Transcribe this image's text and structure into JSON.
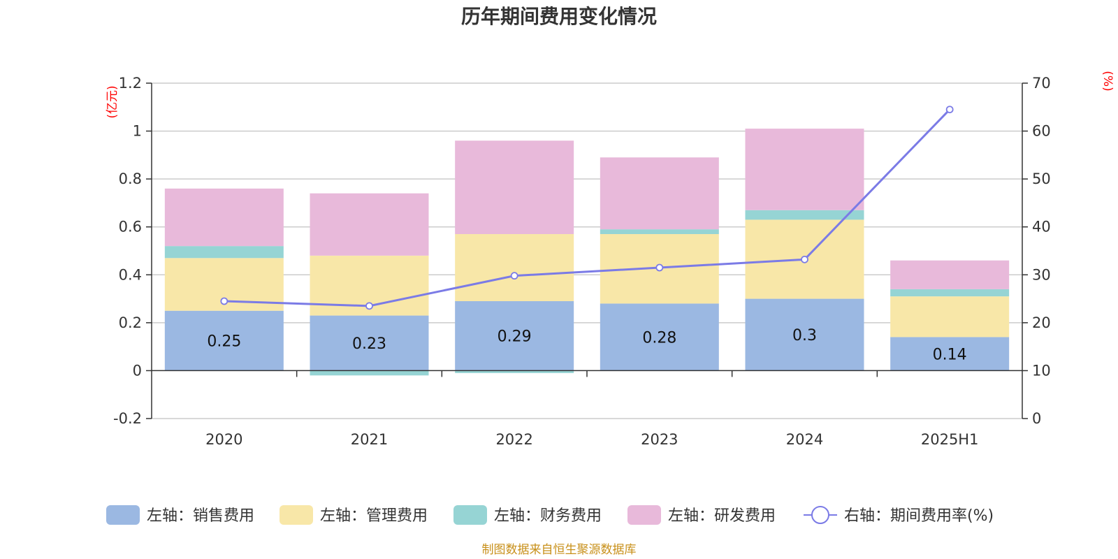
{
  "chart_data": {
    "type": "bar",
    "stacked": true,
    "title": "历年期间费用变化情况",
    "categories": [
      "2020",
      "2021",
      "2022",
      "2023",
      "2024",
      "2025H1"
    ],
    "left_axis": {
      "unit": "(亿元)",
      "range": [
        -0.2,
        1.2
      ],
      "ticks": [
        -0.2,
        0,
        0.2,
        0.4,
        0.6,
        0.8,
        1,
        1.2
      ],
      "tick_labels": [
        "-0.2",
        "0",
        "0.2",
        "0.4",
        "0.6",
        "0.8",
        "1",
        "1.2"
      ]
    },
    "right_axis": {
      "unit": "(%)",
      "range": [
        0,
        70
      ],
      "ticks": [
        0,
        10,
        20,
        30,
        40,
        50,
        60,
        70
      ],
      "tick_labels": [
        "0",
        "10",
        "20",
        "30",
        "40",
        "50",
        "60",
        "70"
      ]
    },
    "series": [
      {
        "name": "左轴：销售费用",
        "type": "bar",
        "axis": "left",
        "color": "#9bb8e2",
        "values": [
          0.25,
          0.23,
          0.29,
          0.28,
          0.3,
          0.14
        ],
        "labels": [
          "0.25",
          "0.23",
          "0.29",
          "0.28",
          "0.3",
          "0.14"
        ]
      },
      {
        "name": "左轴：管理费用",
        "type": "bar",
        "axis": "left",
        "color": "#f8e7a8",
        "values": [
          0.22,
          0.25,
          0.28,
          0.29,
          0.33,
          0.17
        ]
      },
      {
        "name": "左轴：财务费用",
        "type": "bar",
        "axis": "left",
        "color": "#96d4d4",
        "values": [
          0.05,
          -0.02,
          -0.01,
          0.02,
          0.04,
          0.03
        ]
      },
      {
        "name": "左轴：研发费用",
        "type": "bar",
        "axis": "left",
        "color": "#e8b9da",
        "values": [
          0.24,
          0.26,
          0.39,
          0.3,
          0.34,
          0.12
        ]
      },
      {
        "name": "右轴：期间费用率(%)",
        "type": "line",
        "axis": "right",
        "color": "#7b7be6",
        "values": [
          24.5,
          23.5,
          29.8,
          31.5,
          33.2,
          64.5
        ]
      }
    ],
    "grid": true,
    "legend_position": "bottom"
  },
  "source_text": "制图数据来自恒生聚源数据库"
}
